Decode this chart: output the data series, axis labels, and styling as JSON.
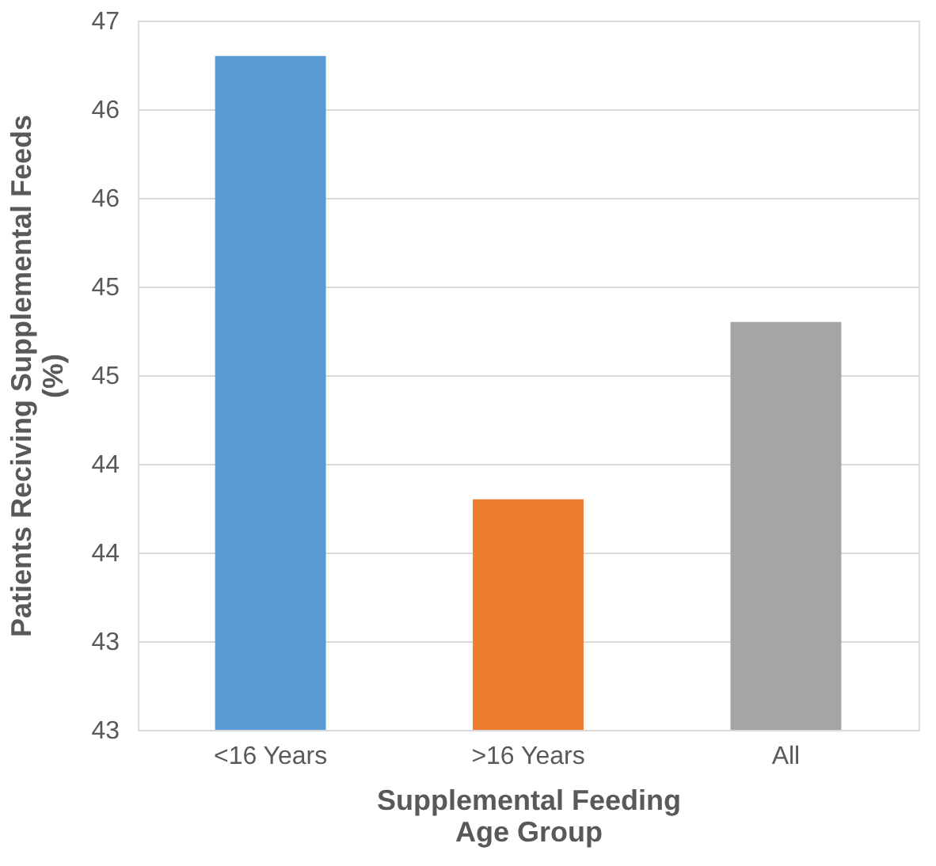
{
  "chart_data": {
    "type": "bar",
    "xlabel": "Supplemental Feeding Age Group",
    "ylabel": "Patients Reciving Supplemental Feeds (%)",
    "categories": [
      "<16 Years",
      ">16 Years",
      "All"
    ],
    "values": [
      46.3,
      43.8,
      44.8
    ],
    "colors": [
      "#5b9bd5",
      "#ed7d31",
      "#a5a5a5"
    ],
    "ylim": [
      42.5,
      46.5
    ],
    "yticks": [
      {
        "value": 42.5,
        "label": "43"
      },
      {
        "value": 43,
        "label": "43"
      },
      {
        "value": 43.5,
        "label": "44"
      },
      {
        "value": 44,
        "label": "44"
      },
      {
        "value": 44.5,
        "label": "45"
      },
      {
        "value": 45,
        "label": "45"
      },
      {
        "value": 45.5,
        "label": "46"
      },
      {
        "value": 46,
        "label": "46"
      },
      {
        "value": 46.5,
        "label": "47"
      }
    ],
    "grid": "y",
    "legend": false
  }
}
